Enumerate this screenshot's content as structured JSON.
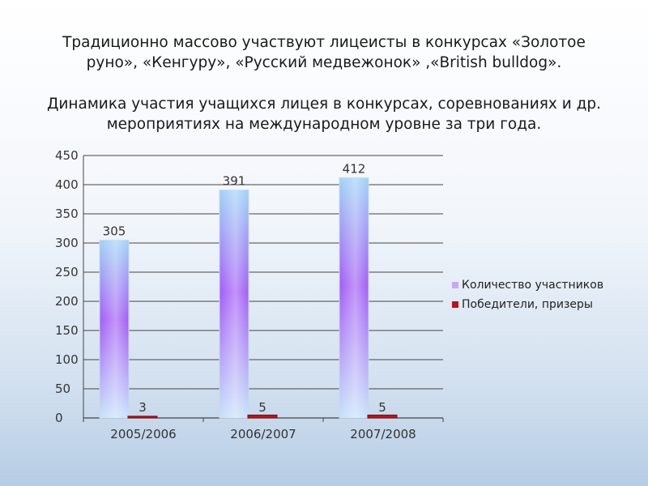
{
  "title": {
    "line1": "Традиционно массово участвуют лицеисты в конкурсах «Золотое",
    "line2": "руно», «Кенгуру», «Русский медвежонок» ,«British bulldog».",
    "line3": "Динамика участия учащихся лицея в конкурсах, соревнованиях и др.",
    "line4": "мероприятиях на международном уровне за три года."
  },
  "colors": {
    "participants_top": "#9fd2f6",
    "participants_mid": "#a35cf5",
    "participants_bottom": "#c7e2fa",
    "winners": "#b8141c",
    "grid": "#444444"
  },
  "chart_data": {
    "type": "bar",
    "categories": [
      "2005/2006",
      "2006/2007",
      "2007/2008"
    ],
    "series": [
      {
        "name": "Количество участников",
        "values": [
          305,
          391,
          412
        ]
      },
      {
        "name": "Победители, призеры",
        "values": [
          3,
          5,
          5
        ]
      }
    ],
    "ylim": [
      0,
      450
    ],
    "yticks": [
      0,
      50,
      100,
      150,
      200,
      250,
      300,
      350,
      400,
      450
    ],
    "grid": true,
    "legend": "right",
    "data_labels": true
  }
}
